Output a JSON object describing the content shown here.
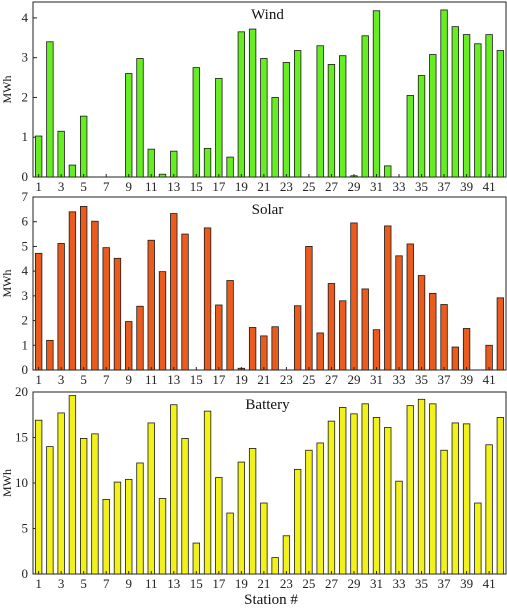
{
  "chart_data": [
    {
      "type": "bar",
      "title": "Wind",
      "ylabel": "MWh",
      "ylim": [
        0,
        4.4
      ],
      "yticks": [
        0,
        1,
        2,
        3,
        4
      ],
      "color": "#66ee22",
      "stations": [
        1,
        2,
        3,
        4,
        5,
        6,
        7,
        8,
        9,
        10,
        11,
        12,
        13,
        14,
        15,
        16,
        17,
        18,
        19,
        20,
        21,
        22,
        23,
        24,
        25,
        26,
        27,
        28,
        29,
        30,
        31,
        32,
        33,
        34,
        35,
        36,
        37,
        38,
        39,
        40,
        41,
        42
      ],
      "xtick_labels": [
        "1",
        "3",
        "5",
        "7",
        "9",
        "11",
        "13",
        "15",
        "17",
        "19",
        "21",
        "23",
        "25",
        "27",
        "29",
        "31",
        "33",
        "35",
        "37",
        "39",
        "41"
      ],
      "values": [
        1.03,
        3.4,
        1.15,
        0.3,
        1.53,
        0,
        0,
        0,
        2.6,
        2.98,
        0.7,
        0.07,
        0.65,
        0,
        2.75,
        0.72,
        2.48,
        0.5,
        3.65,
        3.72,
        2.98,
        2.0,
        2.88,
        3.18,
        0,
        3.3,
        2.83,
        3.05,
        0.03,
        3.55,
        4.18,
        0.28,
        0,
        2.05,
        2.55,
        3.08,
        4.2,
        3.78,
        3.58,
        3.35,
        3.58,
        3.18
      ]
    },
    {
      "type": "bar",
      "title": "Solar",
      "ylabel": "MWh",
      "ylim": [
        0,
        7
      ],
      "yticks": [
        0,
        1,
        2,
        3,
        4,
        5,
        6,
        7
      ],
      "color": "#ea5b1e",
      "stations": [
        1,
        2,
        3,
        4,
        5,
        6,
        7,
        8,
        9,
        10,
        11,
        12,
        13,
        14,
        15,
        16,
        17,
        18,
        19,
        20,
        21,
        22,
        23,
        24,
        25,
        26,
        27,
        28,
        29,
        30,
        31,
        32,
        33,
        34,
        35,
        36,
        37,
        38,
        39,
        40,
        41,
        42
      ],
      "xtick_labels": [
        "1",
        "3",
        "5",
        "7",
        "9",
        "11",
        "13",
        "15",
        "17",
        "19",
        "21",
        "23",
        "25",
        "27",
        "29",
        "31",
        "33",
        "35",
        "37",
        "39",
        "41"
      ],
      "values": [
        4.72,
        1.2,
        5.12,
        6.4,
        6.62,
        6.02,
        4.95,
        4.52,
        1.96,
        2.58,
        5.25,
        3.98,
        6.33,
        5.5,
        0,
        5.75,
        2.63,
        3.62,
        0.07,
        1.72,
        1.38,
        1.75,
        0,
        2.6,
        5.0,
        1.5,
        3.5,
        2.8,
        5.95,
        3.28,
        1.63,
        5.83,
        4.62,
        5.1,
        3.82,
        3.1,
        2.65,
        0.93,
        1.68,
        0,
        1.0,
        2.92
      ]
    },
    {
      "type": "bar",
      "title": "Battery",
      "ylabel": "MWh",
      "ylim": [
        0,
        20
      ],
      "yticks": [
        0,
        5,
        10,
        15,
        20
      ],
      "color": "#f2f21a",
      "stations": [
        1,
        2,
        3,
        4,
        5,
        6,
        7,
        8,
        9,
        10,
        11,
        12,
        13,
        14,
        15,
        16,
        17,
        18,
        19,
        20,
        21,
        22,
        23,
        24,
        25,
        26,
        27,
        28,
        29,
        30,
        31,
        32,
        33,
        34,
        35,
        36,
        37,
        38,
        39,
        40,
        41,
        42
      ],
      "xtick_labels": [
        "1",
        "3",
        "5",
        "7",
        "9",
        "11",
        "13",
        "15",
        "17",
        "19",
        "21",
        "23",
        "25",
        "27",
        "29",
        "31",
        "33",
        "35",
        "37",
        "39",
        "41"
      ],
      "values": [
        16.9,
        14.0,
        17.7,
        19.6,
        14.9,
        15.4,
        8.2,
        10.1,
        10.4,
        12.2,
        16.6,
        8.3,
        18.6,
        14.9,
        3.4,
        17.9,
        10.6,
        6.7,
        12.3,
        13.8,
        7.8,
        1.8,
        4.2,
        11.5,
        13.6,
        14.4,
        16.8,
        18.3,
        17.6,
        18.7,
        17.2,
        16.1,
        10.2,
        18.5,
        19.2,
        18.7,
        13.6,
        16.6,
        16.5,
        7.8,
        14.2,
        17.2
      ]
    }
  ],
  "xlabel": "Station #"
}
